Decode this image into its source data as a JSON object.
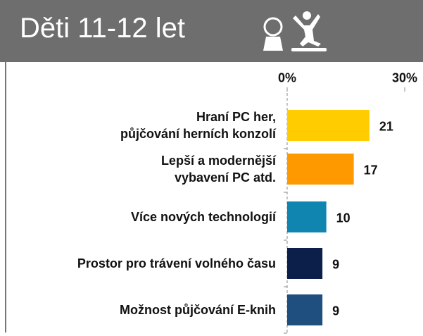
{
  "chart_data": {
    "type": "bar",
    "orientation": "horizontal",
    "title": "Děti 11-12 let",
    "categories": [
      "Hraní PC her,\npůjčování herních konzolí",
      "Lepší a modernější\nvybavení PC atd.",
      "Více nových technologií",
      "Prostor pro trávení volného času",
      "Možnost půjčování E-knih"
    ],
    "values": [
      21,
      17,
      10,
      9,
      9
    ],
    "colors": [
      "#ffcc00",
      "#ff9900",
      "#0f85b0",
      "#0c1f4b",
      "#1f4f7e"
    ],
    "xlim": [
      0,
      30
    ],
    "xticks": [
      {
        "value": 0,
        "label": "0%"
      },
      {
        "value": 30,
        "label": "30%"
      }
    ]
  }
}
